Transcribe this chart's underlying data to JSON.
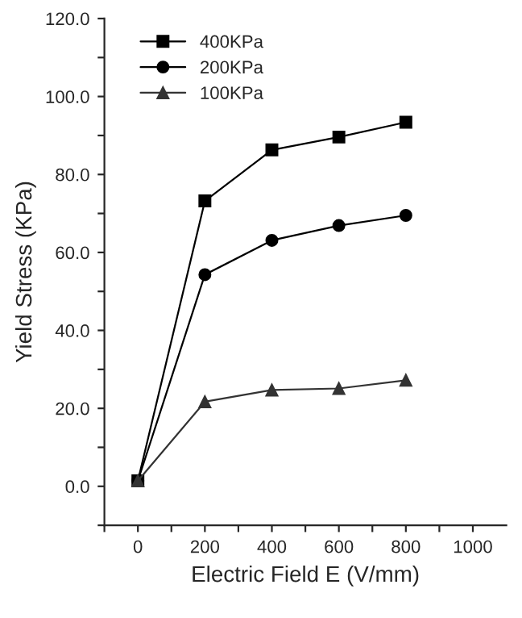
{
  "chart_data": {
    "type": "line",
    "xlabel": "Electric Field E (V/mm)",
    "ylabel": "Yield Stress (KPa)",
    "x": [
      0,
      200,
      400,
      600,
      800
    ],
    "series": [
      {
        "name": "400KPa",
        "color": "#000000",
        "marker": "square",
        "values": [
          1.4,
          73.2,
          86.3,
          89.6,
          93.4
        ]
      },
      {
        "name": "200KPa",
        "color": "#000000",
        "marker": "circle",
        "values": [
          1.4,
          54.3,
          63.1,
          66.9,
          69.5
        ]
      },
      {
        "name": "100KPa",
        "color": "#333333",
        "marker": "triangle",
        "values": [
          1.4,
          21.7,
          24.7,
          25.1,
          27.2
        ]
      }
    ],
    "xlim": [
      -100,
      1100
    ],
    "xticks": [
      {
        "value": -100,
        "label": null
      },
      0,
      {
        "value": 100,
        "label": null
      },
      200,
      {
        "value": 300,
        "label": null
      },
      400,
      {
        "value": 500,
        "label": null
      },
      600,
      {
        "value": 700,
        "label": null
      },
      800,
      {
        "value": 900,
        "label": null
      },
      1000
    ],
    "ylim": [
      -10,
      120
    ],
    "yticks": [
      {
        "value": -10,
        "label": null
      },
      {
        "value": 0,
        "label": "0.0"
      },
      {
        "value": 10,
        "label": null
      },
      {
        "value": 20,
        "label": "20.0"
      },
      {
        "value": 30,
        "label": null
      },
      {
        "value": 40,
        "label": "40.0"
      },
      {
        "value": 50,
        "label": null
      },
      {
        "value": 60,
        "label": "60.0"
      },
      {
        "value": 70,
        "label": null
      },
      {
        "value": 80,
        "label": "80.0"
      },
      {
        "value": 90,
        "label": null
      },
      {
        "value": 100,
        "label": "100.0"
      },
      {
        "value": 110,
        "label": null
      },
      {
        "value": 120,
        "label": "120.0"
      }
    ],
    "grid": false,
    "legend": "top left",
    "line_style": "solid"
  }
}
